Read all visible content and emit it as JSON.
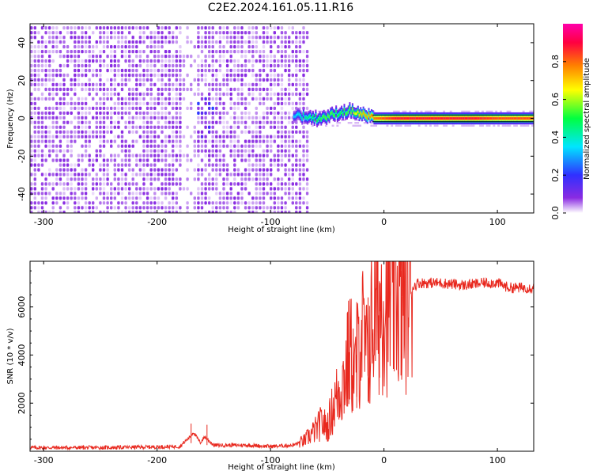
{
  "figure": {
    "title": "C2E2.2024.161.05.11.R16"
  },
  "chart_data": [
    {
      "type": "heatmap",
      "xlabel": "Height of straight line (km)",
      "ylabel": "Frequency (Hz)",
      "xlim": [
        -312,
        132
      ],
      "ylim": [
        -50,
        50
      ],
      "x_ticks": [
        -300,
        -200,
        -100,
        0,
        100
      ],
      "y_ticks": [
        -40,
        -20,
        0,
        20,
        40
      ],
      "colorbar": {
        "label": "Normalized spectral amplitude",
        "range": [
          0,
          1
        ],
        "ticks": [
          0.0,
          0.2,
          0.4,
          0.6,
          0.8
        ],
        "tick_labels": [
          "0.0",
          "0.2",
          "0.4",
          "0.6",
          "0.8"
        ],
        "colors": [
          "#ffffff",
          "#8a2be2",
          "#3030ff",
          "#00e5ff",
          "#00ff40",
          "#ffff00",
          "#ff7f00",
          "#ff0040",
          "#ff00aa"
        ]
      },
      "noise_band": {
        "x": [
          -312,
          -68
        ],
        "y": [
          -50,
          50
        ]
      },
      "gap_band": {
        "x": [
          -180,
          -168
        ]
      },
      "signal_ridge": {
        "x": [
          -80,
          -70,
          -60,
          -50,
          -40,
          -30,
          -20,
          -10,
          0,
          10,
          20,
          50,
          80,
          100,
          132
        ],
        "y": [
          2,
          1,
          0,
          1,
          3,
          4,
          2,
          0,
          0,
          0,
          0,
          0,
          0,
          0,
          0
        ],
        "amplitude": [
          0.35,
          0.45,
          0.5,
          0.55,
          0.5,
          0.55,
          0.7,
          0.75,
          0.8,
          0.85,
          0.85,
          0.85,
          0.85,
          0.8,
          0.8
        ]
      }
    },
    {
      "type": "line",
      "xlabel": "Height of straight line (km)",
      "ylabel": "SNR (10 * v/v)",
      "xlim": [
        -312,
        132
      ],
      "ylim": [
        0,
        7900
      ],
      "x_ticks": [
        -300,
        -200,
        -100,
        0,
        100
      ],
      "y_ticks": [
        2000,
        4000,
        6000
      ],
      "color": "#e8281e",
      "series": [
        {
          "x": [
            -312,
            -250,
            -200,
            -180,
            -172,
            -168,
            -162,
            -158,
            -150,
            -120,
            -100,
            -80,
            -70,
            -60,
            -55,
            -50,
            -45,
            -40,
            -35,
            -30,
            -25,
            -20,
            -15,
            -10,
            -5,
            0,
            5,
            10,
            15,
            20,
            25,
            30,
            40,
            50,
            70,
            90,
            100,
            110,
            132
          ],
          "y": [
            150,
            150,
            180,
            200,
            550,
            800,
            350,
            600,
            250,
            250,
            200,
            250,
            450,
            900,
            1200,
            1000,
            1800,
            2500,
            3000,
            4200,
            3200,
            5200,
            3800,
            5500,
            6000,
            6600,
            6000,
            6800,
            6300,
            6700,
            6800,
            7000,
            7000,
            7000,
            6900,
            7000,
            7000,
            6800,
            6800
          ]
        }
      ],
      "spikes": [
        {
          "x": -170,
          "y": 1150
        },
        {
          "x": -156,
          "y": 1100
        },
        {
          "x": -32,
          "y": 5800
        },
        {
          "x": -24,
          "y": 6200
        },
        {
          "x": -14,
          "y": 6400
        },
        {
          "x": -4,
          "y": 6900
        },
        {
          "x": 9,
          "y": 7900
        },
        {
          "x": 15,
          "y": 7500
        }
      ]
    }
  ]
}
